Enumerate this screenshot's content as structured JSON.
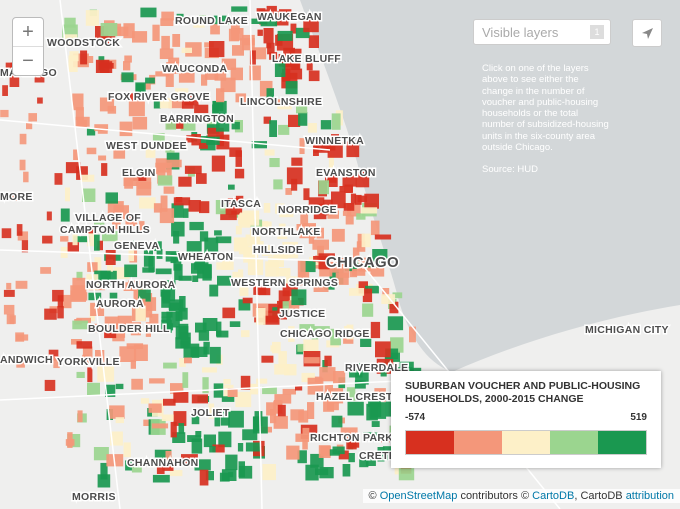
{
  "controls": {
    "zoom_in": "+",
    "zoom_out": "−",
    "layers_placeholder": "Visible layers",
    "layers_count": "1"
  },
  "info": {
    "text": "Click on one of the layers above to see either the change in the number of voucher and public-housing households or the total number of subsidized-housing units in the six-county area outside Chicago.",
    "source": "Source: HUD"
  },
  "places": [
    "ROUND LAKE",
    "WAUKEGAN",
    "WOODSTOCK",
    "MARENGO",
    "WAUCONDA",
    "LAKE BLUFF",
    "FOX RIVER GROVE",
    "LINCOLNSHIRE",
    "BARRINGTON",
    "WEST DUNDEE",
    "WINNETKA",
    "ELGIN",
    "EVANSTON",
    "MORE",
    "ITASCA",
    "NORRIDGE",
    "VILLAGE OF",
    "CAMPTON HILLS",
    "NORTHLAKE",
    "GENEVA",
    "HILLSIDE",
    "WHEATON",
    "CHICAGO",
    "NORTH AURORA",
    "WESTERN SPRINGS",
    "AURORA",
    "JUSTICE",
    "BOULDER HILL",
    "MICHIGAN CITY",
    "CHICAGO RIDGE",
    "ANDWICH",
    "YORKVILLE",
    "RIVERDALE",
    "HAZEL CREST",
    "JOLIET",
    "RICHTON PARK",
    "CRETE",
    "CHANNAHON",
    "MORRIS"
  ],
  "legend": {
    "title": "SUBURBAN VOUCHER AND PUBLIC-HOUSING HOUSEHOLDS, 2000-2015 CHANGE",
    "min": -574,
    "max": 519,
    "colors": [
      "#d7301f",
      "#f4977a",
      "#fdf0c8",
      "#9bd58f",
      "#1a9850"
    ]
  },
  "attribution": {
    "copy1": "©",
    "osm": "OpenStreetMap",
    "contrib": "contributors ©",
    "carto": "CartoDB",
    "carto2": ", CartoDB",
    "attr": "attribution"
  }
}
